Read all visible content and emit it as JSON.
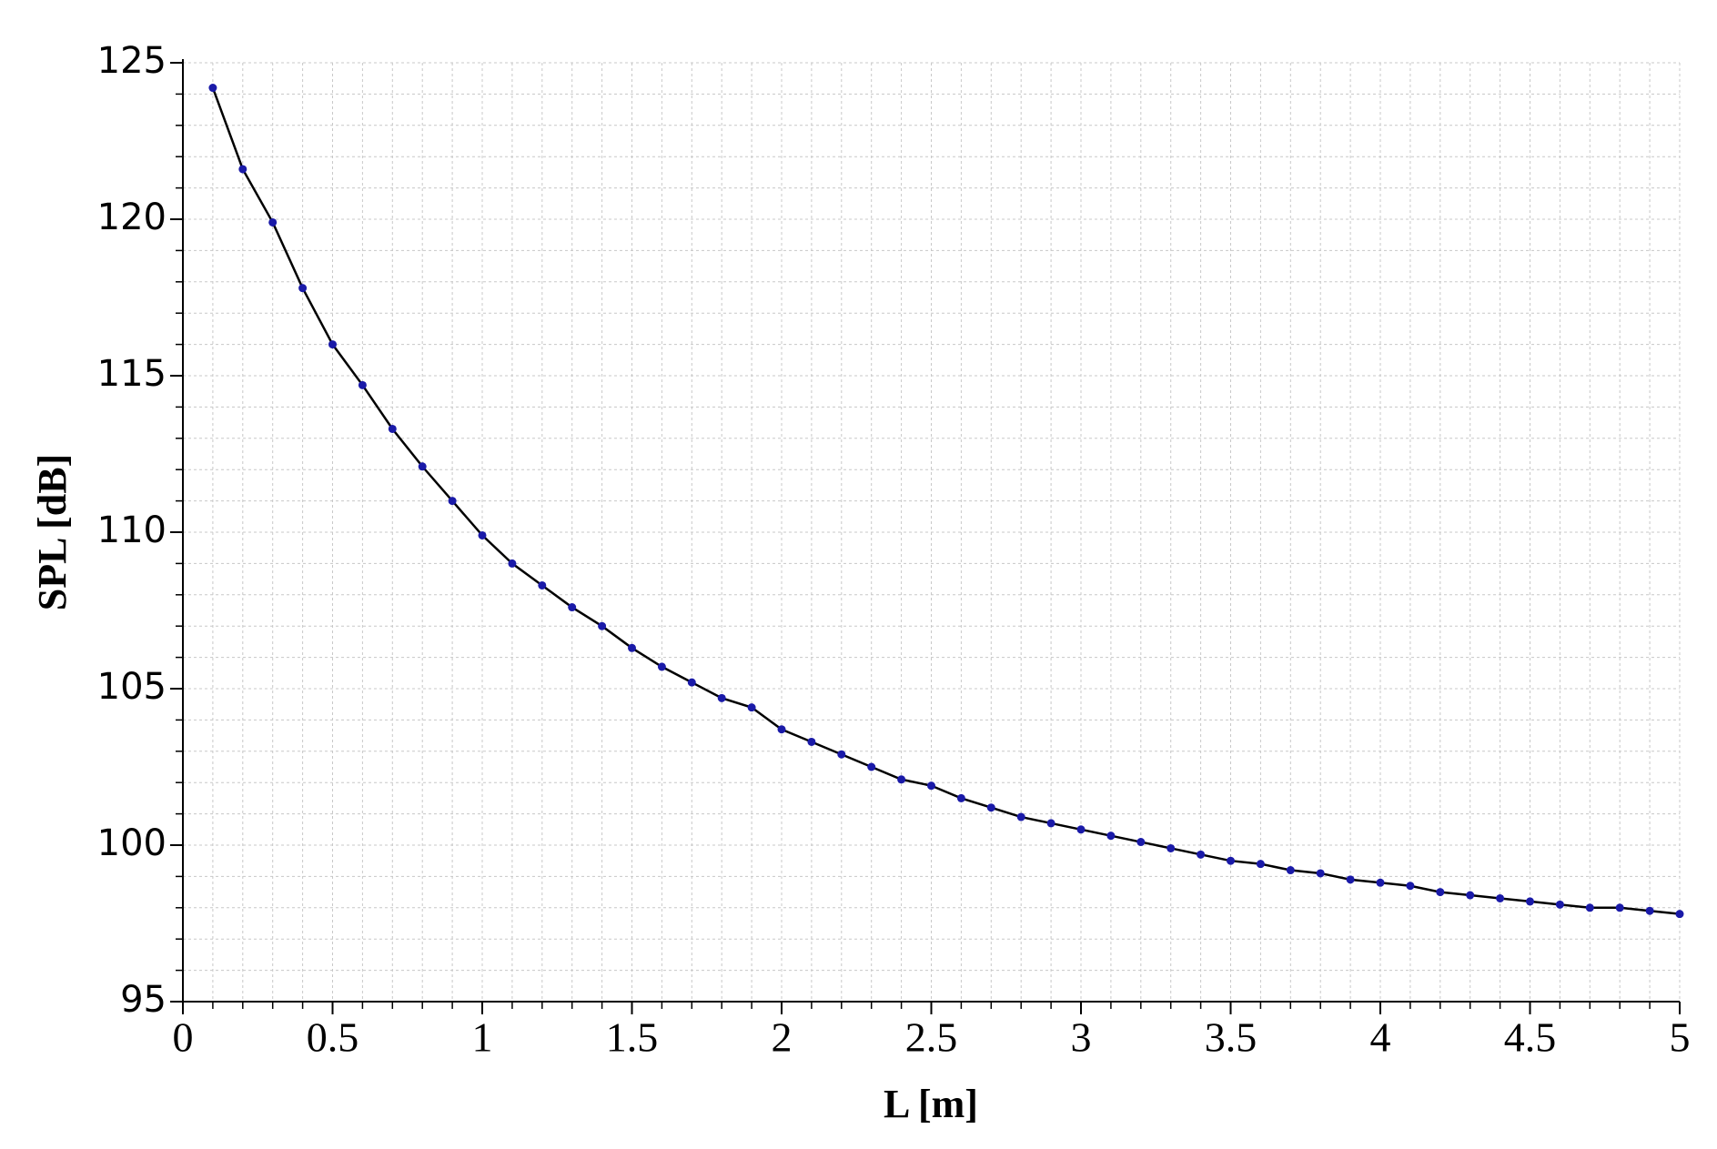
{
  "chart_data": {
    "type": "line",
    "x_label": "L [m]",
    "y_label": "SPL [dB]",
    "x": [
      0.1,
      0.2,
      0.3,
      0.4,
      0.5,
      0.6,
      0.7,
      0.8,
      0.9,
      1.0,
      1.1,
      1.2,
      1.3,
      1.4,
      1.5,
      1.6,
      1.7,
      1.8,
      1.9,
      2.0,
      2.1,
      2.2,
      2.3,
      2.4,
      2.5,
      2.6,
      2.7,
      2.8,
      2.9,
      3.0,
      3.1,
      3.2,
      3.3,
      3.4,
      3.5,
      3.6,
      3.7,
      3.8,
      3.9,
      4.0,
      4.1,
      4.2,
      4.3,
      4.4,
      4.5,
      4.6,
      4.7,
      4.8,
      4.9,
      5.0
    ],
    "series": [
      {
        "color": "#000000",
        "marker_color": "#1a1aa8",
        "values": [
          124.2,
          121.6,
          119.9,
          117.8,
          116.0,
          114.7,
          113.3,
          112.1,
          111.0,
          109.9,
          109.0,
          108.3,
          107.6,
          107.0,
          106.3,
          105.7,
          105.2,
          104.7,
          104.4,
          103.7,
          103.3,
          102.9,
          102.5,
          102.1,
          101.9,
          101.5,
          101.2,
          100.9,
          100.7,
          100.5,
          100.3,
          100.1,
          99.9,
          99.7,
          99.5,
          99.4,
          99.2,
          99.1,
          98.9,
          98.8,
          98.7,
          98.5,
          98.4,
          98.3,
          98.2,
          98.1,
          98.0,
          98.0,
          97.9,
          97.8
        ]
      }
    ],
    "xlim": [
      0,
      5
    ],
    "xticks": [
      0,
      0.5,
      1,
      1.5,
      2,
      2.5,
      3,
      3.5,
      4,
      4.5,
      5
    ],
    "ylim": [
      95,
      125
    ],
    "yticks": [
      95,
      100,
      105,
      110,
      115,
      120,
      125
    ],
    "grid": true
  }
}
